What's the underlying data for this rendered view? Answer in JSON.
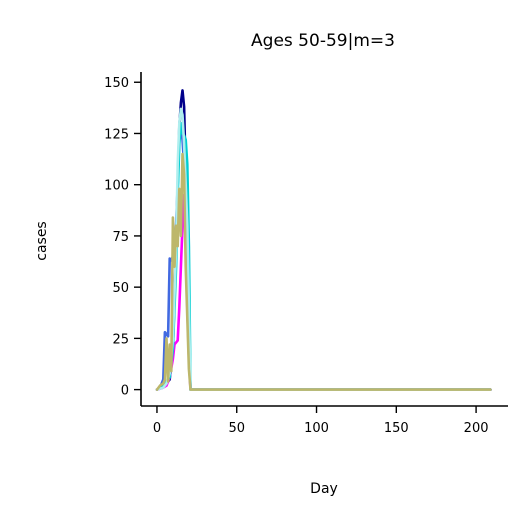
{
  "chart_data": {
    "type": "line",
    "title": "Ages 50-59|m=3",
    "xlabel": "Day",
    "ylabel": "cases",
    "xlim": [
      -10,
      220
    ],
    "ylim": [
      -8,
      155
    ],
    "xticks": [
      0,
      50,
      100,
      150,
      200
    ],
    "yticks": [
      0,
      25,
      50,
      75,
      100,
      125,
      150
    ],
    "grid": false,
    "series": [
      {
        "color": "#00008b",
        "x": [
          0,
          2,
          4,
          6,
          8,
          10,
          11,
          12,
          13,
          14,
          15,
          16,
          17,
          18,
          19,
          20,
          21,
          25,
          50,
          100,
          150,
          200,
          209
        ],
        "y": [
          0,
          1,
          2,
          3,
          5,
          20,
          45,
          70,
          100,
          128,
          140,
          146,
          138,
          105,
          60,
          25,
          0,
          0,
          0,
          0,
          0,
          0,
          0
        ]
      },
      {
        "color": "#4169e1",
        "x": [
          0,
          2,
          4,
          5,
          6,
          7,
          8,
          9,
          10,
          11,
          12,
          13,
          14,
          15,
          16,
          17,
          18,
          19,
          20,
          21,
          25,
          50,
          100,
          150,
          200,
          209
        ],
        "y": [
          0,
          1,
          5,
          28,
          27,
          26,
          64,
          63,
          65,
          66,
          80,
          100,
          124,
          128,
          122,
          110,
          90,
          55,
          20,
          0,
          0,
          0,
          0,
          0,
          0,
          0
        ]
      },
      {
        "color": "#ff00ff",
        "x": [
          0,
          4,
          6,
          8,
          10,
          11,
          12,
          13,
          14,
          15,
          16,
          17,
          18,
          19,
          20,
          21,
          25,
          50,
          100,
          150,
          200,
          209
        ],
        "y": [
          0,
          1,
          2,
          6,
          15,
          22,
          23,
          24,
          40,
          60,
          80,
          95,
          70,
          40,
          15,
          0,
          0,
          0,
          0,
          0,
          0,
          0
        ]
      },
      {
        "color": "#00ced1",
        "x": [
          0,
          4,
          6,
          8,
          10,
          12,
          13,
          14,
          15,
          16,
          17,
          18,
          19,
          20,
          21,
          25,
          50,
          100,
          150,
          200,
          209
        ],
        "y": [
          0,
          2,
          4,
          6,
          20,
          60,
          95,
          120,
          130,
          125,
          124,
          122,
          110,
          70,
          0,
          0,
          0,
          0,
          0,
          0,
          0
        ]
      },
      {
        "color": "#afeeee",
        "x": [
          0,
          4,
          6,
          8,
          10,
          12,
          13,
          14,
          15,
          16,
          17,
          18,
          19,
          20,
          21,
          25,
          50,
          100,
          150,
          200,
          209
        ],
        "y": [
          0,
          1,
          3,
          8,
          25,
          70,
          110,
          130,
          137,
          134,
          120,
          100,
          80,
          40,
          0,
          0,
          0,
          0,
          0,
          0,
          0
        ]
      },
      {
        "color": "#bdb76b",
        "x": [
          0,
          2,
          4,
          5,
          6,
          7,
          8,
          9,
          10,
          11,
          12,
          13,
          14,
          15,
          16,
          17,
          18,
          19,
          20,
          21,
          25,
          50,
          100,
          150,
          200,
          209
        ],
        "y": [
          0,
          2,
          3,
          5,
          25,
          4,
          22,
          9,
          84,
          60,
          80,
          70,
          98,
          75,
          115,
          105,
          60,
          35,
          10,
          0,
          0,
          0,
          0,
          0,
          0,
          0
        ]
      }
    ]
  }
}
